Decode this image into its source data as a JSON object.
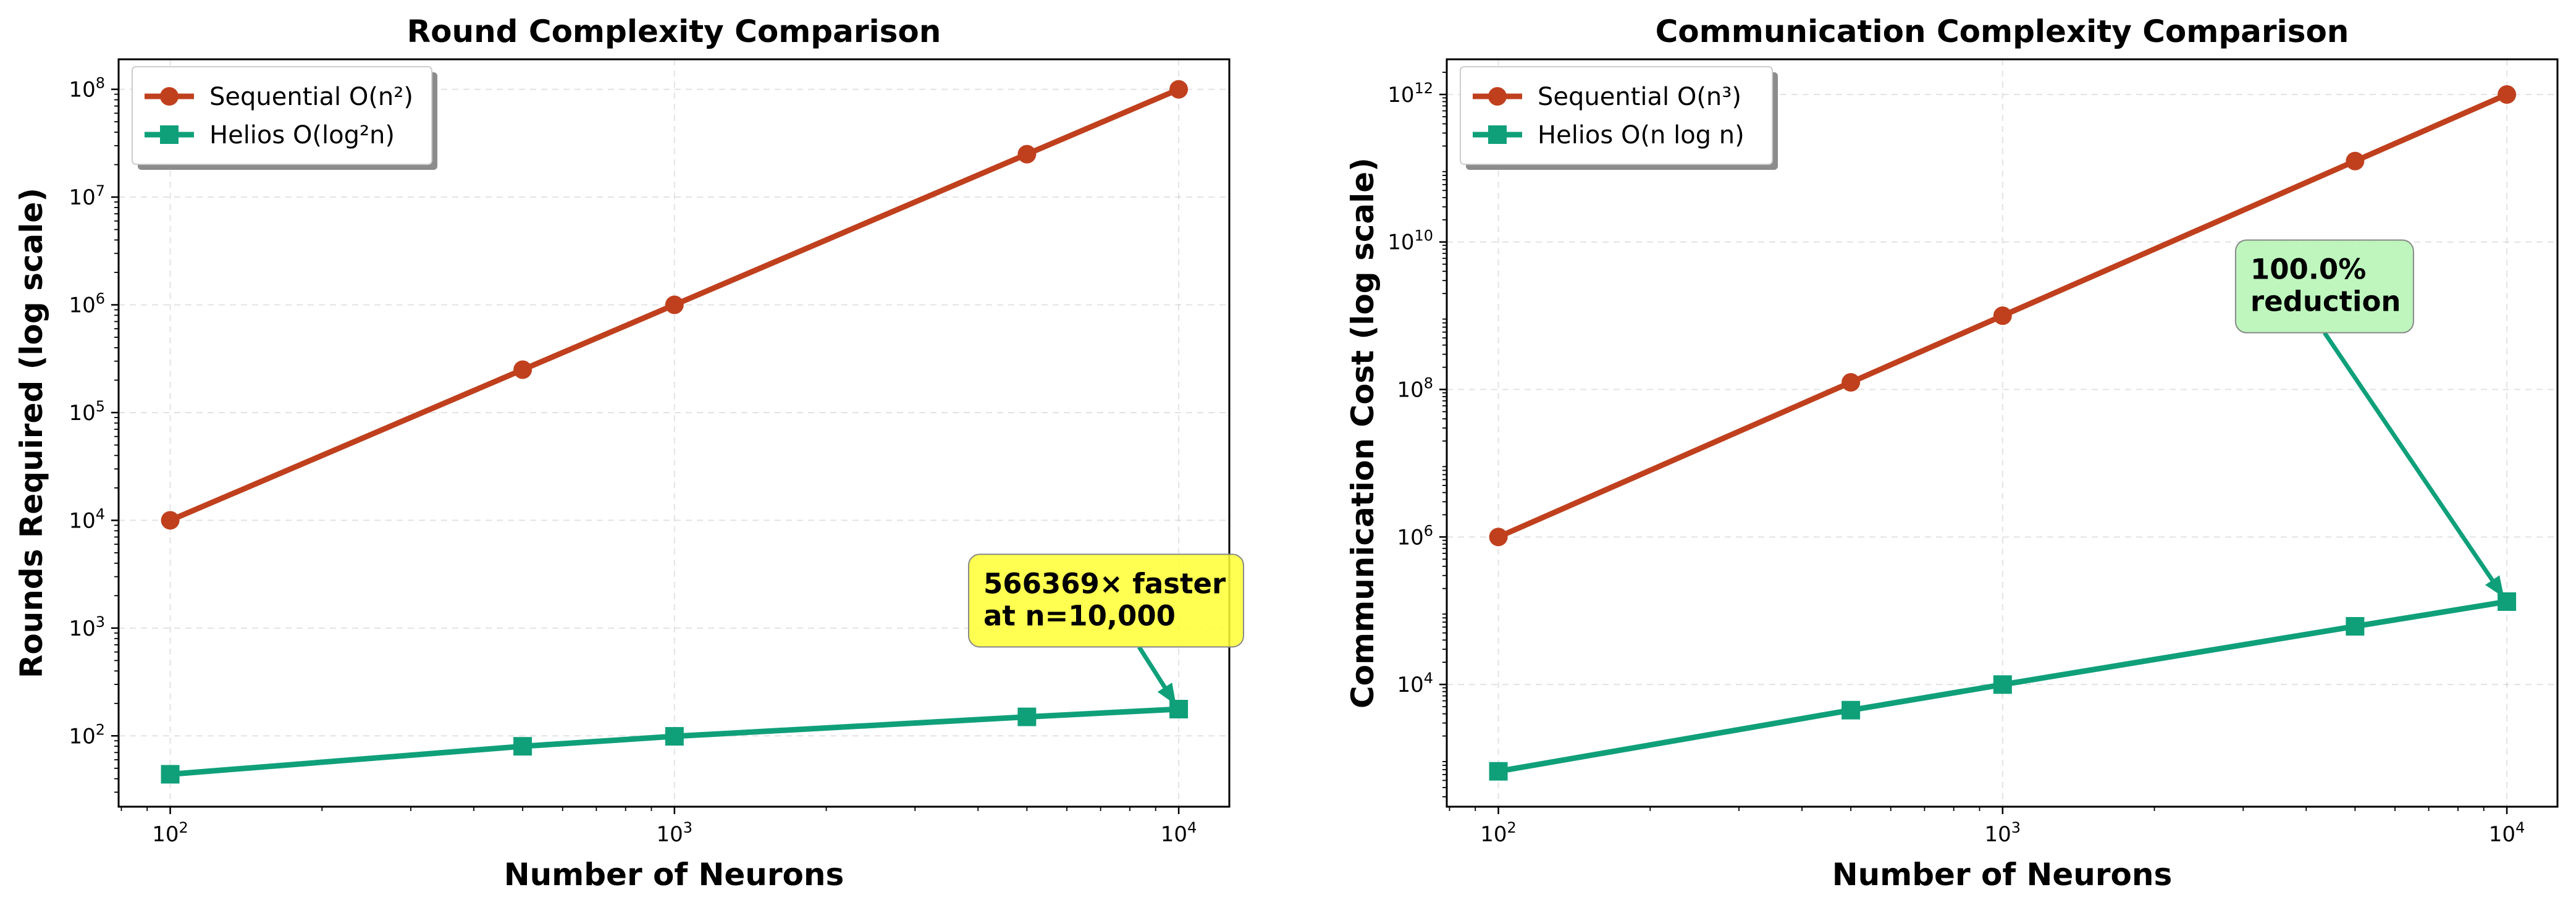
{
  "chart_data": [
    {
      "type": "line",
      "title": "Round Complexity Comparison",
      "xlabel": "Number of Neurons",
      "ylabel": "Rounds Required (log scale)",
      "xscale": "log",
      "yscale": "log",
      "xlim": [
        79,
        12600
      ],
      "ylim": [
        22,
        190000000
      ],
      "x_ticks": [
        100,
        1000,
        10000
      ],
      "y_ticks": [
        100,
        1000,
        10000,
        100000,
        1000000,
        10000000,
        100000000
      ],
      "grid": true,
      "legend_position": "top-left",
      "x": [
        100,
        500,
        1000,
        5000,
        10000
      ],
      "series": [
        {
          "name": "Sequential O(n²)",
          "color": "#c0401e",
          "marker": "circle",
          "values": [
            10000,
            250000,
            1000000,
            25000000,
            100000000
          ]
        },
        {
          "name": "Helios O(log²n)",
          "color": "#0fa07a",
          "marker": "square",
          "values": [
            44,
            80,
            99,
            150,
            177
          ]
        }
      ],
      "annotation": {
        "lines": [
          "566369× faster",
          "at n=10,000"
        ],
        "box_color": "#ffff33",
        "arrow_color": "#0fa07a",
        "target": [
          10000,
          177
        ],
        "text_at": [
          4100,
          1800
        ]
      }
    },
    {
      "type": "line",
      "title": "Communication Complexity Comparison",
      "xlabel": "Number of Neurons",
      "ylabel": "Communication Cost (log scale)",
      "xscale": "log",
      "yscale": "log",
      "xlim": [
        79,
        12600
      ],
      "ylim": [
        220,
        3000000000000
      ],
      "x_ticks": [
        100,
        1000,
        10000
      ],
      "y_ticks": [
        10000,
        1000000,
        100000000,
        10000000000,
        1000000000000
      ],
      "grid": true,
      "legend_position": "top-left",
      "x": [
        100,
        500,
        1000,
        5000,
        10000
      ],
      "series": [
        {
          "name": "Sequential O(n³)",
          "color": "#c0401e",
          "marker": "circle",
          "values": [
            1000000,
            125000000,
            1000000000,
            125000000000,
            1000000000000
          ]
        },
        {
          "name": "Helios O(n log n)",
          "color": "#0fa07a",
          "marker": "square",
          "values": [
            664,
            4482,
            9966,
            61438,
            132877
          ]
        }
      ],
      "annotation": {
        "lines": [
          "100.0%",
          "reduction"
        ],
        "box_color": "#b3f5b3",
        "arrow_color": "#0fa07a",
        "target": [
          10000,
          132877
        ],
        "text_at": [
          3100,
          2500000000
        ]
      }
    }
  ]
}
